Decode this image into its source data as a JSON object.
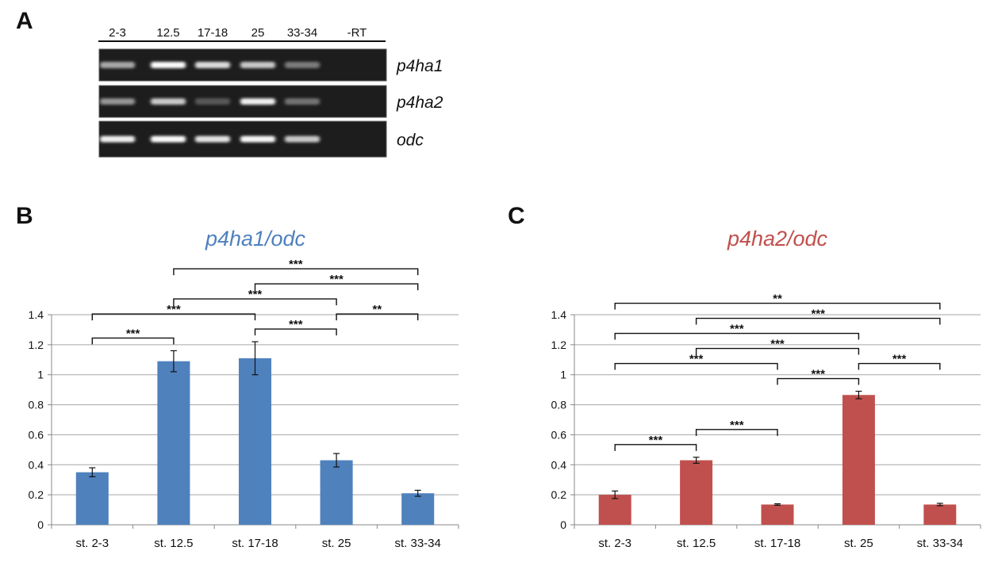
{
  "panel_labels": {
    "a": "A",
    "b": "B",
    "c": "C"
  },
  "gel": {
    "lane_labels": [
      "2-3",
      "12.5",
      "17-18",
      "25",
      "33-34",
      "-RT"
    ],
    "genes": [
      "p4ha1",
      "p4ha2",
      "odc"
    ],
    "band_intensity": [
      [
        0.55,
        0.98,
        0.82,
        0.72,
        0.32,
        0.0
      ],
      [
        0.45,
        0.72,
        0.15,
        0.92,
        0.28,
        0.0
      ],
      [
        0.92,
        0.98,
        0.85,
        0.96,
        0.72,
        0.0
      ]
    ]
  },
  "chart_data": [
    {
      "type": "bar",
      "panel": "B",
      "title": "p4ha1/odc",
      "title_color": "#4f81bd",
      "bar_color": "#4f81bd",
      "categories": [
        "st. 2-3",
        "st. 12.5",
        "st. 17-18",
        "st. 25",
        "st. 33-34"
      ],
      "values": [
        0.35,
        1.09,
        1.11,
        0.43,
        0.21
      ],
      "errors": [
        0.03,
        0.07,
        0.11,
        0.045,
        0.02
      ],
      "ylim": [
        0,
        1.4
      ],
      "yticks": [
        "0",
        "0.2",
        "0.4",
        "0.6",
        "0.8",
        "1",
        "1.2",
        "1.4"
      ],
      "grid": true,
      "significance": [
        {
          "from": 0,
          "to": 1,
          "label": "***"
        },
        {
          "from": 1,
          "to": 3,
          "label": "***"
        },
        {
          "from": 0,
          "to": 2,
          "label": "***"
        },
        {
          "from": 1,
          "to": 4,
          "label": "***"
        },
        {
          "from": 2,
          "to": 3,
          "label": "***"
        },
        {
          "from": 2,
          "to": 4,
          "label": "***"
        },
        {
          "from": 3,
          "to": 4,
          "label": "**"
        }
      ]
    },
    {
      "type": "bar",
      "panel": "C",
      "title": "p4ha2/odc",
      "title_color": "#c0504d",
      "bar_color": "#c0504d",
      "categories": [
        "st. 2-3",
        "st. 12.5",
        "st. 17-18",
        "st. 25",
        "st. 33-34"
      ],
      "values": [
        0.2,
        0.43,
        0.135,
        0.865,
        0.135
      ],
      "errors": [
        0.025,
        0.02,
        0.005,
        0.025,
        0.008
      ],
      "ylim": [
        0,
        1.4
      ],
      "yticks": [
        "0",
        "0.2",
        "0.4",
        "0.6",
        "0.8",
        "1",
        "1.2",
        "1.4"
      ],
      "grid": true,
      "significance": [
        {
          "from": 0,
          "to": 4,
          "label": "**"
        },
        {
          "from": 0,
          "to": 3,
          "label": "***"
        },
        {
          "from": 1,
          "to": 4,
          "label": "***"
        },
        {
          "from": 1,
          "to": 3,
          "label": "***"
        },
        {
          "from": 2,
          "to": 3,
          "label": "***"
        },
        {
          "from": 3,
          "to": 4,
          "label": "***"
        },
        {
          "from": 0,
          "to": 2,
          "label": "***"
        },
        {
          "from": 0,
          "to": 1,
          "label": "***"
        },
        {
          "from": 1,
          "to": 2,
          "label": "***"
        }
      ]
    }
  ]
}
